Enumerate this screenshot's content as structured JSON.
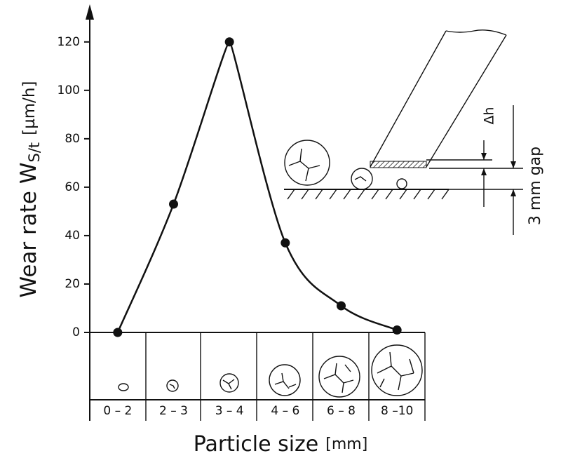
{
  "chart_data": {
    "type": "line",
    "y_label": "Wear rate W",
    "y_label_sub": "S/t",
    "y_label_unit": "[µm/h]",
    "x_label": "Particle size",
    "x_label_unit": "[mm]",
    "categories": [
      "0 – 2",
      "2 – 3",
      "3 – 4",
      "4 – 6",
      "6 – 8",
      "8 –10"
    ],
    "values": [
      0,
      53,
      120,
      37,
      11,
      1
    ],
    "color": "#111111",
    "ylim": [
      0,
      135
    ],
    "yticks": [
      0,
      20,
      40,
      60,
      80,
      100,
      120
    ],
    "annotations": {
      "delta_h": "Δh",
      "gap": "3 mm gap"
    }
  }
}
